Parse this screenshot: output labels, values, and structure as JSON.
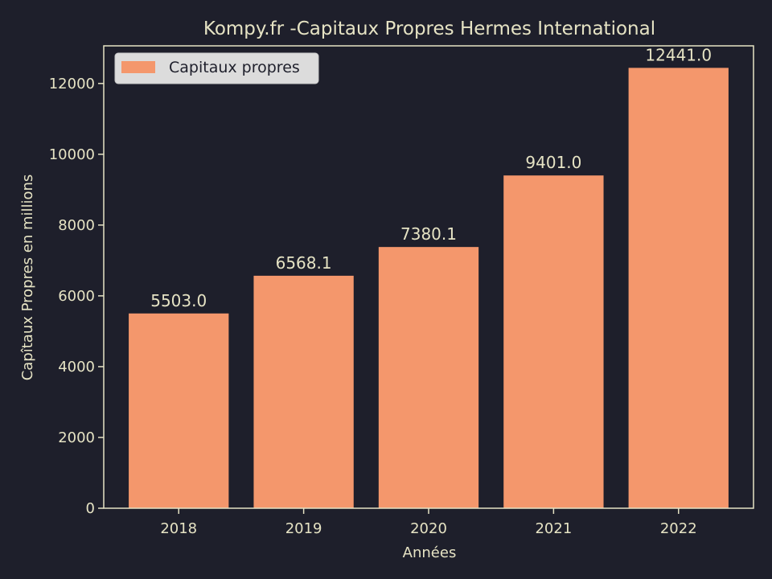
{
  "chart_data": {
    "type": "bar",
    "title": "Kompy.fr -Capitaux Propres Hermes International",
    "xlabel": "Années",
    "ylabel": "Capîtaux Propres en millions",
    "categories": [
      "2018",
      "2019",
      "2020",
      "2021",
      "2022"
    ],
    "series": [
      {
        "name": "Capitaux propres",
        "values": [
          5503.0,
          6568.1,
          7380.1,
          9401.0,
          12441.0
        ]
      }
    ],
    "value_labels": [
      "5503.0",
      "6568.1",
      "7380.1",
      "9401.0",
      "12441.0"
    ],
    "yticks": [
      0,
      2000,
      4000,
      6000,
      8000,
      10000,
      12000
    ],
    "ylim": [
      0,
      13063.05
    ],
    "grid": false,
    "legend": "top-left"
  },
  "colors": {
    "background": "#1e1f2b",
    "bar": "#f4976c",
    "text": "#e6e3c4",
    "axis": "#e6e3c4",
    "legend_bg": "#dcdcdc",
    "legend_text": "#1e1f2b"
  }
}
